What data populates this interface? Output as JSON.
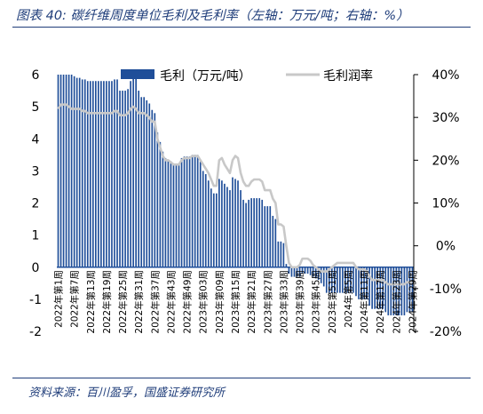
{
  "figure": {
    "title": "图表 40:  碳纤维周度单位毛利及毛利率（左轴：万元/吨；右轴：%）",
    "source": "资料来源：百川盈孚，国盛证券研究所"
  },
  "colors": {
    "bar": "#1f4e99",
    "line": "#c8c8c8",
    "frame": "#1f3d7a"
  },
  "chart_data": {
    "type": "bar",
    "title": "",
    "xlabel": "",
    "ylabel": "",
    "ylim": [
      -2,
      6
    ],
    "y2lim": [
      -20,
      40
    ],
    "yticks": [
      -2,
      -1,
      0,
      1,
      2,
      3,
      4,
      5,
      6
    ],
    "y2ticks": [
      "-20%",
      "-10%",
      "0%",
      "10%",
      "20%",
      "30%",
      "40%"
    ],
    "legend_position": "top",
    "categories": [
      "2022年第1周",
      "2022年第2周",
      "2022年第3周",
      "2022年第4周",
      "2022年第5周",
      "2022年第6周",
      "2022年第7周",
      "2022年第8周",
      "2022年第9周",
      "2022年第10周",
      "2022年第11周",
      "2022年第12周",
      "2022年第13周",
      "2022年第14周",
      "2022年第15周",
      "2022年第16周",
      "2022年第17周",
      "2022年第18周",
      "2022年第19周",
      "2022年第20周",
      "2022年第21周",
      "2022年第22周",
      "2022年第23周",
      "2022年第24周",
      "2022年第25周",
      "2022年第26周",
      "2022年第27周",
      "2022年第28周",
      "2022年第29周",
      "2022年第30周",
      "2022年第31周",
      "2022年第32周",
      "2022年第33周",
      "2022年第34周",
      "2022年第35周",
      "2022年第36周",
      "2022年第37周",
      "2022年第38周",
      "2022年第39周",
      "2022年第40周",
      "2022年第41周",
      "2022年第42周",
      "2022年第43周",
      "2022年第44周",
      "2022年第45周",
      "2022年第46周",
      "2022年第47周",
      "2022年第48周",
      "2022年第49周",
      "2022年第50周",
      "2022年第51周",
      "2022年第52周",
      "2023年第1周",
      "2023年第2周",
      "2023年第3周",
      "2023年第4周",
      "2023年第5周",
      "2023年第6周",
      "2023年第7周",
      "2023年第8周",
      "2023年第9周",
      "2023年第10周",
      "2023年第11周",
      "2023年第12周",
      "2023年第13周",
      "2023年第14周",
      "2023年第15周",
      "2023年第16周",
      "2023年第17周",
      "2023年第18周",
      "2023年第19周",
      "2023年第20周",
      "2023年第21周",
      "2023年第22周",
      "2023年第23周",
      "2023年第24周",
      "2023年第25周",
      "2023年第26周",
      "2023年第27周",
      "2023年第28周",
      "2023年第29周",
      "2023年第30周",
      "2023年第31周",
      "2023年第32周",
      "2023年第33周",
      "2023年第34周",
      "2023年第35周",
      "2023年第36周",
      "2023年第37周",
      "2023年第38周",
      "2023年第39周",
      "2023年第40周",
      "2023年第41周",
      "2023年第42周",
      "2023年第43周",
      "2023年第44周",
      "2023年第45周",
      "2023年第46周",
      "2023年第47周",
      "2023年第48周",
      "2023年第49周",
      "2023年第50周",
      "2023年第51周",
      "2023年第52周",
      "2024年第1周",
      "2024年第2周",
      "2024年第3周",
      "2024年第4周",
      "2024年第5周",
      "2024年第6周",
      "2024年第7周",
      "2024年第8周",
      "2024年第9周",
      "2024年第10周",
      "2024年第11周",
      "2024年第12周",
      "2024年第13周",
      "2024年第14周",
      "2024年第15周",
      "2024年第16周",
      "2024年第17周",
      "2024年第18周",
      "2024年第19周",
      "2024年第20周",
      "2024年第21周",
      "2024年第22周",
      "2024年第23周",
      "2024年第24周",
      "2024年第25周",
      "2024年第26周",
      "2024年第27周",
      "2024年第28周",
      "2024年第29周"
    ],
    "tick_labels": [
      "2022年第1周",
      "2022年第7周",
      "2022年第13周",
      "2022年第19周",
      "2022年第25周",
      "2022年第31周",
      "2022年第37周",
      "2022年第43周",
      "2022年第49周",
      "2023年第03周",
      "2023年第09周",
      "2023年第15周",
      "2023年第21周",
      "2023年第27周",
      "2023年第33周",
      "2023年第39周",
      "2023年第45周",
      "2023年第51周",
      "2024年第5周",
      "2024年第11周",
      "2024年第17周",
      "2024年第23周",
      "2024年第29周"
    ],
    "tick_indices": [
      0,
      6,
      12,
      18,
      24,
      30,
      36,
      42,
      48,
      54,
      60,
      66,
      72,
      78,
      84,
      90,
      96,
      102,
      108,
      114,
      120,
      126,
      132
    ],
    "series": [
      {
        "name": "毛利（万元/吨）",
        "axis": "left",
        "type": "bar",
        "values": [
          6,
          6,
          6,
          6,
          6,
          6,
          5.95,
          5.9,
          5.9,
          5.85,
          5.85,
          5.8,
          5.8,
          5.8,
          5.8,
          5.8,
          5.8,
          5.8,
          5.8,
          5.8,
          5.8,
          5.85,
          5.85,
          5.5,
          5.5,
          5.5,
          5.55,
          5.8,
          5.9,
          5.9,
          5.5,
          5.3,
          5.3,
          5.2,
          5.1,
          4.9,
          4.8,
          4.2,
          3.9,
          3.6,
          3.4,
          3.3,
          3.3,
          3.2,
          3.2,
          3.2,
          3.4,
          3.45,
          3.45,
          3.45,
          3.5,
          3.5,
          3.5,
          3.3,
          3.0,
          2.9,
          2.7,
          2.45,
          2.3,
          2.3,
          2.75,
          2.7,
          2.6,
          2.5,
          2.4,
          2.8,
          2.75,
          2.7,
          2.4,
          2.1,
          2.0,
          2.1,
          2.15,
          2.15,
          2.15,
          2.15,
          2.1,
          1.9,
          1.9,
          1.9,
          1.6,
          1.5,
          0.8,
          0.8,
          0.75,
          0.1,
          -0.2,
          -0.3,
          -0.3,
          -0.3,
          -0.3,
          -0.2,
          -0.2,
          -0.2,
          -0.25,
          -0.3,
          -0.35,
          -0.4,
          -0.5,
          -0.6,
          -0.8,
          -0.8,
          -0.8,
          -0.8,
          -0.8,
          -0.8,
          -0.8,
          -0.8,
          -0.8,
          -0.8,
          -0.8,
          -0.9,
          -1.0,
          -1.0,
          -1.0,
          -1.0,
          -1.2,
          -1.3,
          -1.3,
          -1.3,
          -1.3,
          -1.3,
          -1.4,
          -1.5,
          -1.5,
          -1.5,
          -1.5,
          -1.5,
          -1.5,
          -1.5,
          -1.4,
          -1.4,
          -1.4
        ]
      },
      {
        "name": "毛利润率",
        "axis": "right",
        "type": "line",
        "values": [
          32,
          33,
          33,
          33,
          32.5,
          32,
          32,
          32,
          32,
          31.5,
          31.5,
          31,
          31,
          31,
          31,
          31,
          31,
          31,
          31,
          31,
          31,
          31.5,
          31.5,
          30.5,
          30.5,
          30.5,
          31,
          32,
          32.5,
          32,
          31,
          31,
          31,
          30.5,
          30,
          29,
          29,
          25,
          23,
          21,
          20,
          20,
          19.5,
          19,
          19,
          19,
          20,
          20.5,
          20.5,
          20.5,
          21,
          21,
          21,
          20,
          19,
          18,
          17,
          15.5,
          14,
          14,
          20,
          20.5,
          19,
          18,
          17,
          20,
          21,
          20.5,
          17,
          15,
          14,
          14,
          15,
          15.5,
          15.5,
          15.5,
          15,
          13,
          13,
          13,
          11,
          10,
          5,
          5,
          4.5,
          0,
          -4,
          -5,
          -5,
          -5,
          -4.5,
          -3,
          -3,
          -3,
          -3.5,
          -4.5,
          -5,
          -5.5,
          -6,
          -6,
          -6,
          -5.5,
          -5,
          -4.5,
          -4,
          -4,
          -4,
          -4,
          -4,
          -4,
          -4,
          -5,
          -5.5,
          -5.5,
          -5.5,
          -6,
          -7,
          -8,
          -8,
          -8,
          -8,
          -8,
          -8.5,
          -9,
          -9,
          -9,
          -9,
          -9,
          -9,
          -9,
          -8.5,
          -8.5,
          -8.5
        ]
      }
    ]
  }
}
